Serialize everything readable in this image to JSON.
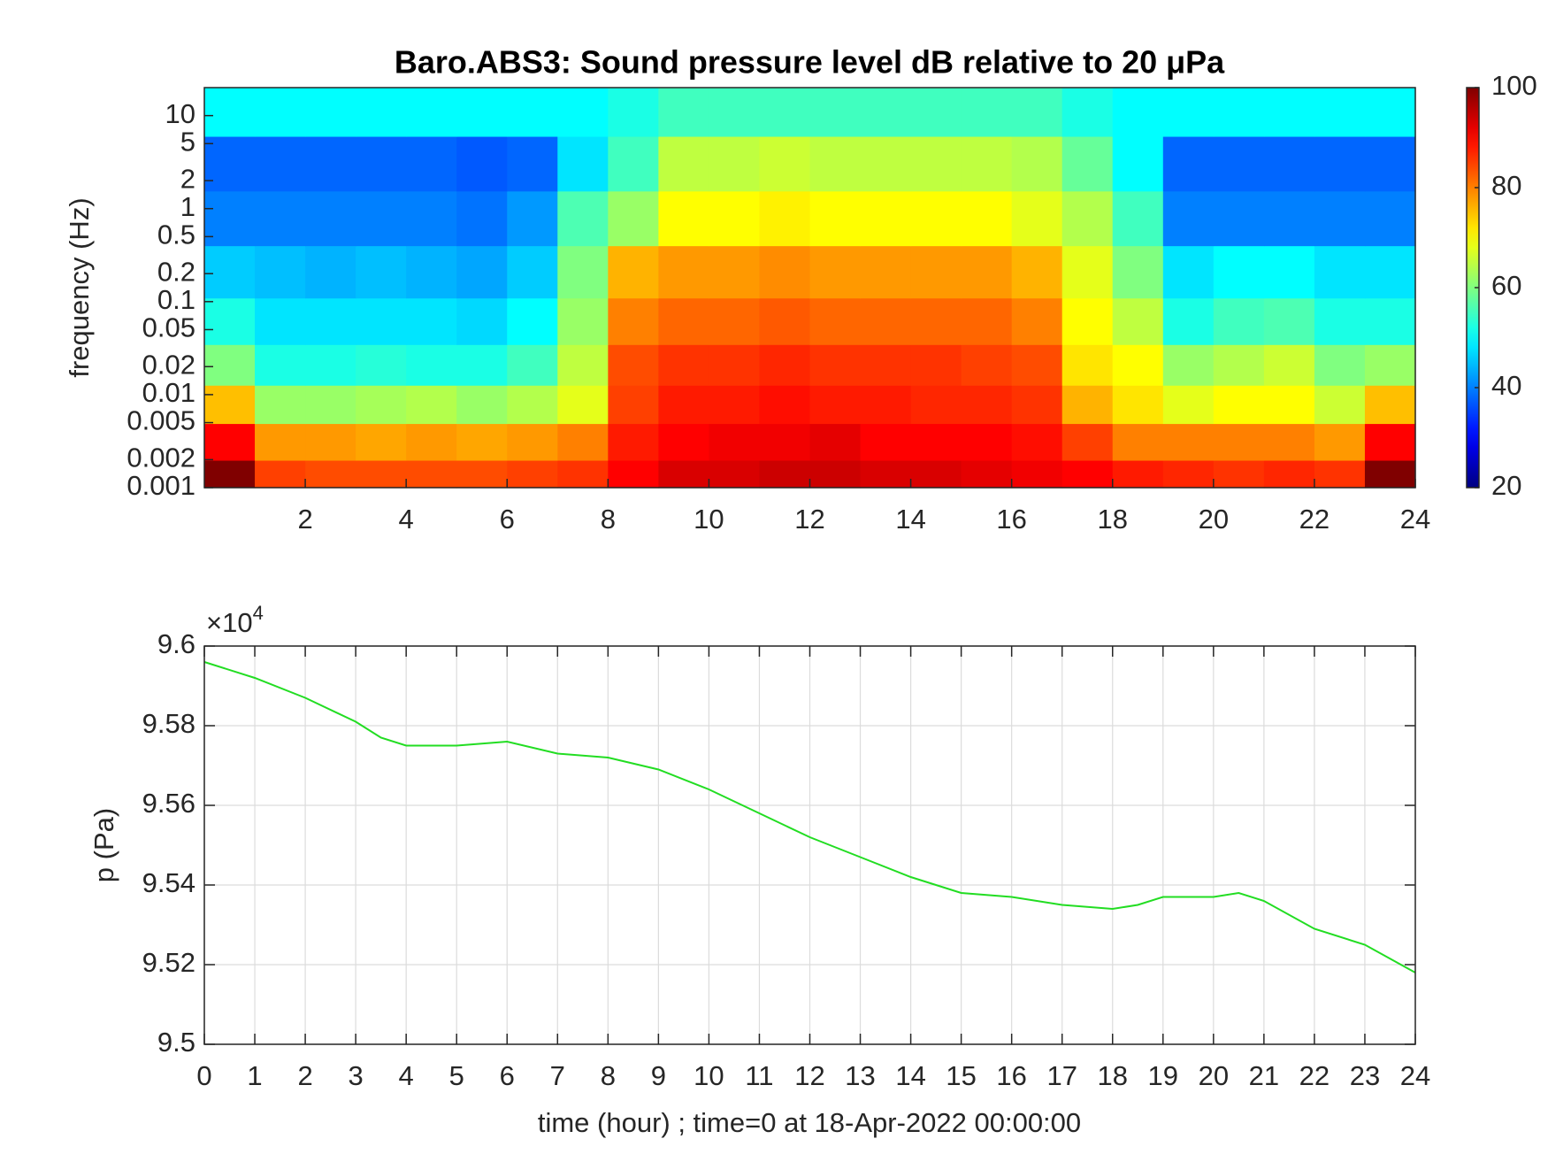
{
  "chart_data": [
    {
      "type": "heatmap",
      "title": "Baro.ABS3: Sound pressure level dB relative to 20 μPa",
      "y_label": "frequency (Hz)",
      "x": [
        0.5,
        1.5,
        2.5,
        3.5,
        4.5,
        5.5,
        6.5,
        7.5,
        8.5,
        9.5,
        10.5,
        11.5,
        12.5,
        13.5,
        14.5,
        15.5,
        16.5,
        17.5,
        18.5,
        19.5,
        20.5,
        21.5,
        22.5,
        23.5
      ],
      "y": [
        0.0013,
        0.003,
        0.008,
        0.02,
        0.06,
        0.2,
        0.8,
        3,
        12
      ],
      "z": [
        [
          100,
          85,
          84,
          84,
          84,
          84,
          85,
          86,
          90,
          93,
          93,
          94,
          94,
          93,
          93,
          92,
          91,
          90,
          88,
          87,
          86,
          87,
          86,
          100
        ],
        [
          90,
          78,
          78,
          77,
          78,
          77,
          78,
          80,
          88,
          90,
          91,
          91,
          92,
          90,
          90,
          90,
          89,
          85,
          80,
          80,
          80,
          80,
          78,
          90
        ],
        [
          75,
          62,
          62,
          63,
          64,
          62,
          64,
          68,
          85,
          88,
          88,
          89,
          88,
          88,
          87,
          87,
          86,
          76,
          72,
          68,
          70,
          70,
          66,
          75
        ],
        [
          60,
          52,
          52,
          53,
          52,
          52,
          55,
          65,
          84,
          86,
          86,
          87,
          86,
          86,
          86,
          85,
          84,
          72,
          70,
          62,
          64,
          66,
          60,
          62
        ],
        [
          52,
          48,
          48,
          48,
          48,
          47,
          50,
          62,
          80,
          82,
          82,
          83,
          82,
          82,
          82,
          82,
          80,
          70,
          65,
          52,
          55,
          56,
          52,
          52
        ],
        [
          46,
          45,
          44,
          45,
          44,
          43,
          46,
          60,
          76,
          78,
          78,
          79,
          78,
          78,
          78,
          78,
          76,
          68,
          60,
          48,
          50,
          50,
          48,
          48
        ],
        [
          40,
          40,
          40,
          40,
          40,
          39,
          42,
          56,
          62,
          70,
          70,
          71,
          70,
          70,
          70,
          70,
          68,
          64,
          55,
          40,
          40,
          40,
          40,
          40
        ],
        [
          38,
          38,
          38,
          38,
          38,
          37,
          38,
          48,
          55,
          65,
          65,
          66,
          65,
          65,
          65,
          65,
          64,
          58,
          50,
          38,
          38,
          38,
          38,
          38
        ],
        [
          50,
          50,
          50,
          50,
          50,
          50,
          50,
          50,
          52,
          55,
          55,
          55,
          55,
          55,
          55,
          55,
          55,
          52,
          50,
          50,
          50,
          50,
          50,
          50
        ]
      ],
      "xlim": [
        0,
        24
      ],
      "xticks": [
        2,
        4,
        6,
        8,
        10,
        12,
        14,
        16,
        18,
        20,
        22,
        24
      ],
      "ylim": [
        0.001,
        20
      ],
      "ylog": true,
      "yticks": [
        0.001,
        0.002,
        0.005,
        0.01,
        0.02,
        0.05,
        0.1,
        0.2,
        0.5,
        1,
        2,
        5,
        10
      ],
      "zlim": [
        20,
        100
      ],
      "zticks": [
        20,
        40,
        60,
        80,
        100
      ],
      "colormap": "jet"
    },
    {
      "type": "line",
      "x_label": "time (hour) ; time=0 at 18-Apr-2022 00:00:00",
      "y_label": "p (Pa)",
      "y_exponent_base": "×10",
      "y_exponent": "4",
      "series": [
        {
          "color": "#22dd22",
          "x": [
            0,
            1,
            2,
            3,
            3.5,
            4,
            5,
            6,
            7,
            8,
            9,
            10,
            11,
            12,
            13,
            14,
            15,
            16,
            17,
            18,
            18.5,
            19,
            20,
            20.5,
            21,
            22,
            23,
            24
          ],
          "values": [
            9.596,
            9.592,
            9.587,
            9.581,
            9.577,
            9.575,
            9.575,
            9.576,
            9.573,
            9.572,
            9.569,
            9.564,
            9.558,
            9.552,
            9.547,
            9.542,
            9.538,
            9.537,
            9.535,
            9.534,
            9.535,
            9.537,
            9.537,
            9.538,
            9.536,
            9.529,
            9.525,
            9.518
          ]
        }
      ],
      "xlim": [
        0,
        24
      ],
      "xticks": [
        0,
        1,
        2,
        3,
        4,
        5,
        6,
        7,
        8,
        9,
        10,
        11,
        12,
        13,
        14,
        15,
        16,
        17,
        18,
        19,
        20,
        21,
        22,
        23,
        24
      ],
      "ylim": [
        9.5,
        9.6
      ],
      "yticks": [
        9.5,
        9.52,
        9.54,
        9.56,
        9.58,
        9.6
      ],
      "grid": true
    }
  ]
}
